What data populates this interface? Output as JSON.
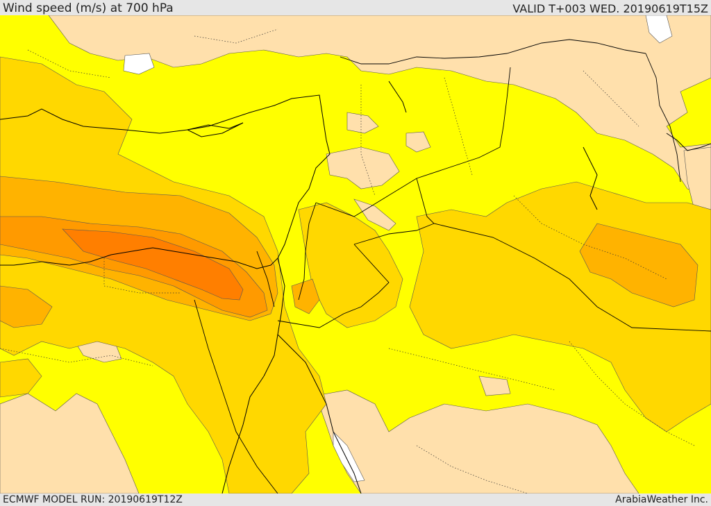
{
  "header": {
    "title": "Wind speed (m/s) at 700 hPa",
    "valid": "VALID T+003 WED. 20190619T15Z"
  },
  "footer": {
    "run": "ECMWF MODEL RUN: 20190619T12Z",
    "credit": "ArabiaWeather Inc."
  },
  "colors": {
    "calm": "#ffe0ac",
    "light": "#ffff00",
    "moderate": "#ffd800",
    "fresh": "#ffb300",
    "strong": "#ff9a00",
    "strongest": "#ff7f00",
    "water_gap": "#ffffff",
    "borders": "#000000"
  }
}
